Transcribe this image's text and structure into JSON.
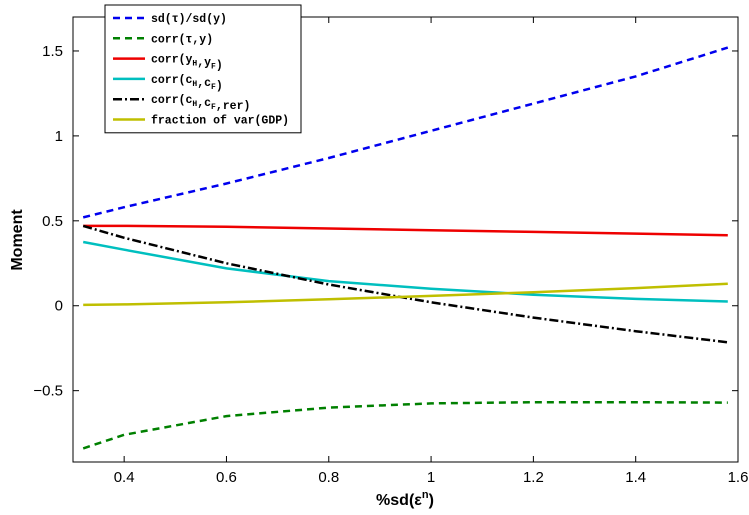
{
  "chart_data": {
    "type": "line",
    "xlabel": "%sd(ε",
    "xlabel_sup": "n",
    "xlabel_close": ")",
    "ylabel": "Moment",
    "xlim": [
      0.3,
      1.6
    ],
    "ylim": [
      -0.92,
      1.7
    ],
    "xticks": [
      0.4,
      0.6,
      0.8,
      1,
      1.2,
      1.4,
      1.6
    ],
    "xtick_labels": [
      "0.4",
      "0.6",
      "0.8",
      "1",
      "1.2",
      "1.4",
      "1.6"
    ],
    "yticks": [
      -0.5,
      0,
      0.5,
      1,
      1.5
    ],
    "ytick_labels": [
      "−0.5",
      "0",
      "0.5",
      "1",
      "1.5"
    ],
    "grid": false,
    "legend_position": "top-left",
    "x": [
      0.32,
      0.4,
      0.6,
      0.8,
      1.0,
      1.2,
      1.4,
      1.58
    ],
    "series": [
      {
        "name": "sd(τ)/sd(y)",
        "label_parts": [
          [
            "sd(τ)/sd(y)",
            false
          ]
        ],
        "color": "#0000ee",
        "dash": "7,5",
        "values": [
          0.52,
          0.58,
          0.72,
          0.87,
          1.03,
          1.19,
          1.35,
          1.52
        ]
      },
      {
        "name": "corr(τ,y)",
        "label_parts": [
          [
            "corr(τ,y)",
            false
          ]
        ],
        "color": "#008000",
        "dash": "7,5",
        "values": [
          -0.84,
          -0.76,
          -0.65,
          -0.6,
          -0.575,
          -0.568,
          -0.568,
          -0.57
        ]
      },
      {
        "name": "corr(yH,yF)",
        "label_parts": [
          [
            "corr(y",
            false
          ],
          [
            "H",
            true
          ],
          [
            ",y",
            false
          ],
          [
            "F",
            true
          ],
          [
            ")",
            false
          ]
        ],
        "color": "#ee0000",
        "dash": "",
        "values": [
          0.47,
          0.47,
          0.465,
          0.455,
          0.445,
          0.435,
          0.425,
          0.415
        ]
      },
      {
        "name": "corr(cH,cF)",
        "label_parts": [
          [
            "corr(c",
            false
          ],
          [
            "H",
            true
          ],
          [
            ",c",
            false
          ],
          [
            "F",
            true
          ],
          [
            ")",
            false
          ]
        ],
        "color": "#00bfbf",
        "dash": "",
        "values": [
          0.375,
          0.33,
          0.22,
          0.145,
          0.1,
          0.065,
          0.04,
          0.025
        ]
      },
      {
        "name": "corr(cH,cF,rer)",
        "label_parts": [
          [
            "corr(c",
            false
          ],
          [
            "H",
            true
          ],
          [
            ",c",
            false
          ],
          [
            "F",
            true
          ],
          [
            ",rer)",
            false
          ]
        ],
        "color": "#000000",
        "dash": "9,3,2,3",
        "values": [
          0.47,
          0.4,
          0.25,
          0.125,
          0.02,
          -0.07,
          -0.15,
          -0.215
        ]
      },
      {
        "name": "fraction of var(GDP)",
        "label_parts": [
          [
            "fraction of var(GDP)",
            false
          ]
        ],
        "color": "#bfbf00",
        "dash": "",
        "values": [
          0.005,
          0.008,
          0.02,
          0.038,
          0.058,
          0.08,
          0.104,
          0.13
        ]
      }
    ]
  }
}
